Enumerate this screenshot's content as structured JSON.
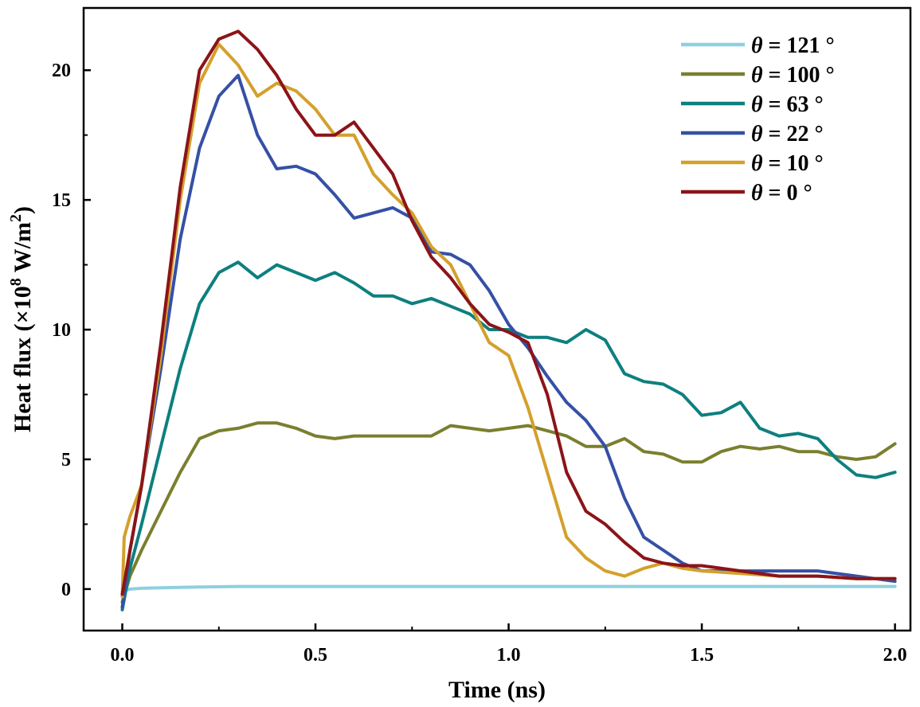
{
  "chart_data": {
    "type": "line",
    "xlabel": "Time (ns)",
    "ylabel_prefix": "Heat flux (×10",
    "ylabel_exp": "8",
    "ylabel_mid": " W/m",
    "ylabel_exp2": "2",
    "ylabel_suffix": ")",
    "xlim": [
      -0.1,
      2.04
    ],
    "ylim": [
      -1.6,
      22.4
    ],
    "x_ticks": [
      0.0,
      0.5,
      1.0,
      1.5,
      2.0
    ],
    "x_tick_labels": [
      "0.0",
      "0.5",
      "1.0",
      "1.5",
      "2.0"
    ],
    "y_ticks": [
      0,
      5,
      10,
      15,
      20
    ],
    "y_tick_labels": [
      "0",
      "5",
      "10",
      "15",
      "20"
    ],
    "legend_position": "top-right",
    "series": [
      {
        "name": "θ = 121 °",
        "legend": {
          "symbol": "θ",
          "rest": " = 121 °"
        },
        "color": "#8ed0e0",
        "x": [
          0.0,
          0.02,
          0.05,
          0.1,
          0.2,
          0.3,
          0.5,
          0.8,
          1.0,
          1.5,
          2.0
        ],
        "y": [
          -0.1,
          0.0,
          0.03,
          0.05,
          0.08,
          0.1,
          0.1,
          0.1,
          0.1,
          0.1,
          0.1
        ]
      },
      {
        "name": "θ = 100 °",
        "legend": {
          "symbol": "θ",
          "rest": " = 100 °"
        },
        "color": "#7a7f2e",
        "x": [
          0.0,
          0.02,
          0.05,
          0.1,
          0.15,
          0.2,
          0.25,
          0.3,
          0.35,
          0.4,
          0.45,
          0.5,
          0.55,
          0.6,
          0.7,
          0.8,
          0.85,
          0.9,
          0.95,
          1.0,
          1.05,
          1.1,
          1.15,
          1.2,
          1.25,
          1.3,
          1.35,
          1.4,
          1.45,
          1.5,
          1.55,
          1.6,
          1.65,
          1.7,
          1.75,
          1.8,
          1.85,
          1.9,
          1.95,
          2.0
        ],
        "y": [
          -0.5,
          0.5,
          1.5,
          3.0,
          4.5,
          5.8,
          6.1,
          6.2,
          6.4,
          6.4,
          6.2,
          5.9,
          5.8,
          5.9,
          5.9,
          5.9,
          6.3,
          6.2,
          6.1,
          6.2,
          6.3,
          6.1,
          5.9,
          5.5,
          5.5,
          5.8,
          5.3,
          5.2,
          4.9,
          4.9,
          5.3,
          5.5,
          5.4,
          5.5,
          5.3,
          5.3,
          5.1,
          5.0,
          5.1,
          5.6
        ]
      },
      {
        "name": "θ = 63 °",
        "legend": {
          "symbol": "θ",
          "rest": " = 63 °"
        },
        "color": "#0e7f7f",
        "x": [
          0.0,
          0.02,
          0.05,
          0.1,
          0.15,
          0.2,
          0.25,
          0.3,
          0.35,
          0.4,
          0.45,
          0.5,
          0.55,
          0.6,
          0.65,
          0.7,
          0.75,
          0.8,
          0.85,
          0.9,
          0.95,
          1.0,
          1.05,
          1.1,
          1.15,
          1.2,
          1.25,
          1.3,
          1.35,
          1.4,
          1.45,
          1.5,
          1.55,
          1.6,
          1.65,
          1.7,
          1.75,
          1.8,
          1.85,
          1.9,
          1.95,
          2.0
        ],
        "y": [
          -0.8,
          0.8,
          2.5,
          5.5,
          8.5,
          11.0,
          12.2,
          12.6,
          12.0,
          12.5,
          12.2,
          11.9,
          12.2,
          11.8,
          11.3,
          11.3,
          11.0,
          11.2,
          10.9,
          10.6,
          10.0,
          10.0,
          9.7,
          9.7,
          9.5,
          10.0,
          9.6,
          8.3,
          8.0,
          7.9,
          7.5,
          6.7,
          6.8,
          7.2,
          6.2,
          5.9,
          6.0,
          5.8,
          5.0,
          4.4,
          4.3,
          4.5
        ]
      },
      {
        "name": "θ = 22 °",
        "legend": {
          "symbol": "θ",
          "rest": " = 22 °"
        },
        "color": "#3550a5",
        "x": [
          0.0,
          0.02,
          0.05,
          0.1,
          0.15,
          0.2,
          0.25,
          0.3,
          0.35,
          0.4,
          0.45,
          0.5,
          0.55,
          0.6,
          0.65,
          0.7,
          0.75,
          0.8,
          0.85,
          0.9,
          0.95,
          1.0,
          1.05,
          1.1,
          1.15,
          1.2,
          1.25,
          1.3,
          1.35,
          1.4,
          1.45,
          1.5,
          1.55,
          1.6,
          1.7,
          1.8,
          1.9,
          2.0
        ],
        "y": [
          -0.7,
          1.5,
          4.0,
          8.5,
          13.5,
          17.0,
          19.0,
          19.8,
          17.5,
          16.2,
          16.3,
          16.0,
          15.2,
          14.3,
          14.5,
          14.7,
          14.3,
          13.0,
          12.9,
          12.5,
          11.5,
          10.2,
          9.3,
          8.2,
          7.2,
          6.5,
          5.5,
          3.5,
          2.0,
          1.5,
          1.0,
          0.7,
          0.7,
          0.7,
          0.7,
          0.7,
          0.5,
          0.3
        ]
      },
      {
        "name": "θ = 10 °",
        "legend": {
          "symbol": "θ",
          "rest": " = 10 °"
        },
        "color": "#d4a02c",
        "x": [
          0.0,
          0.005,
          0.02,
          0.05,
          0.1,
          0.15,
          0.2,
          0.25,
          0.3,
          0.35,
          0.4,
          0.45,
          0.5,
          0.55,
          0.6,
          0.65,
          0.7,
          0.75,
          0.8,
          0.85,
          0.9,
          0.95,
          1.0,
          1.05,
          1.1,
          1.15,
          1.2,
          1.25,
          1.3,
          1.35,
          1.4,
          1.45,
          1.5,
          1.6,
          1.7,
          1.8,
          1.9,
          2.0
        ],
        "y": [
          -0.3,
          2.0,
          2.8,
          4.0,
          9.0,
          15.0,
          19.5,
          21.0,
          20.2,
          19.0,
          19.5,
          19.2,
          18.5,
          17.5,
          17.5,
          16.0,
          15.2,
          14.5,
          13.2,
          12.5,
          11.0,
          9.5,
          9.0,
          7.0,
          4.5,
          2.0,
          1.2,
          0.7,
          0.5,
          0.8,
          1.0,
          0.8,
          0.7,
          0.6,
          0.5,
          0.5,
          0.4,
          0.4
        ]
      },
      {
        "name": "θ = 0 °",
        "legend": {
          "symbol": "θ",
          "rest": " = 0 °"
        },
        "color": "#8b1418",
        "x": [
          0.0,
          0.02,
          0.05,
          0.1,
          0.15,
          0.2,
          0.25,
          0.3,
          0.35,
          0.4,
          0.45,
          0.5,
          0.55,
          0.6,
          0.65,
          0.7,
          0.75,
          0.8,
          0.85,
          0.9,
          0.95,
          1.0,
          1.05,
          1.1,
          1.15,
          1.2,
          1.25,
          1.3,
          1.35,
          1.4,
          1.45,
          1.5,
          1.6,
          1.7,
          1.8,
          1.9,
          2.0
        ],
        "y": [
          -0.2,
          1.5,
          4.0,
          9.5,
          15.5,
          20.0,
          21.2,
          21.5,
          20.8,
          19.8,
          18.5,
          17.5,
          17.5,
          18.0,
          17.0,
          16.0,
          14.2,
          12.8,
          12.0,
          11.0,
          10.2,
          9.9,
          9.5,
          7.5,
          4.5,
          3.0,
          2.5,
          1.8,
          1.2,
          1.0,
          0.9,
          0.9,
          0.7,
          0.5,
          0.5,
          0.4,
          0.4
        ]
      }
    ]
  }
}
